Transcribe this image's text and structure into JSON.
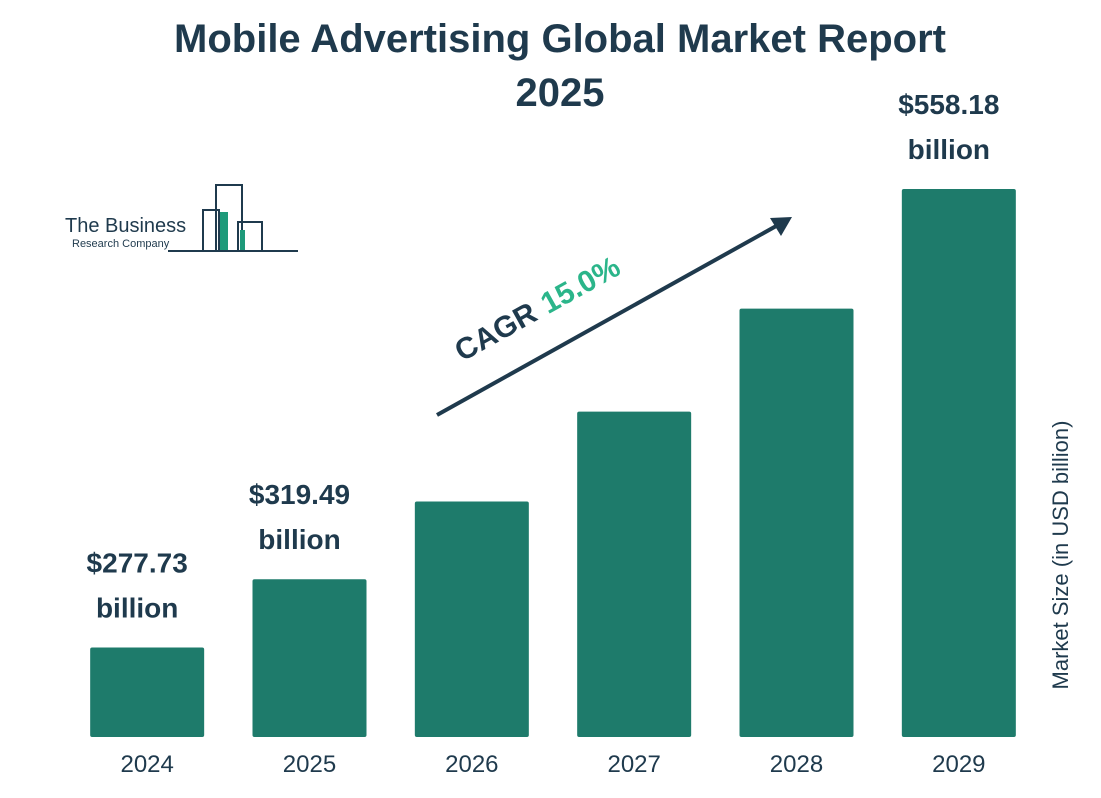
{
  "chart_data": {
    "type": "bar",
    "title": "Mobile Advertising Global Market Report 2025",
    "categories": [
      "2024",
      "2025",
      "2026",
      "2027",
      "2028",
      "2029"
    ],
    "values": [
      277.73,
      319.49,
      367,
      422,
      485,
      558.18
    ],
    "value_labels": [
      "$277.73 billion",
      "$319.49 billion",
      null,
      null,
      null,
      "$558.18 billion"
    ],
    "color": "#1e7b6b",
    "ylim": [
      223,
      560
    ],
    "y_label": "Market Size (in USD billion)",
    "annotation": {
      "label": "CAGR",
      "value": "15.0%"
    }
  },
  "logo": {
    "line1": "The Business",
    "line2": "Research Company"
  }
}
